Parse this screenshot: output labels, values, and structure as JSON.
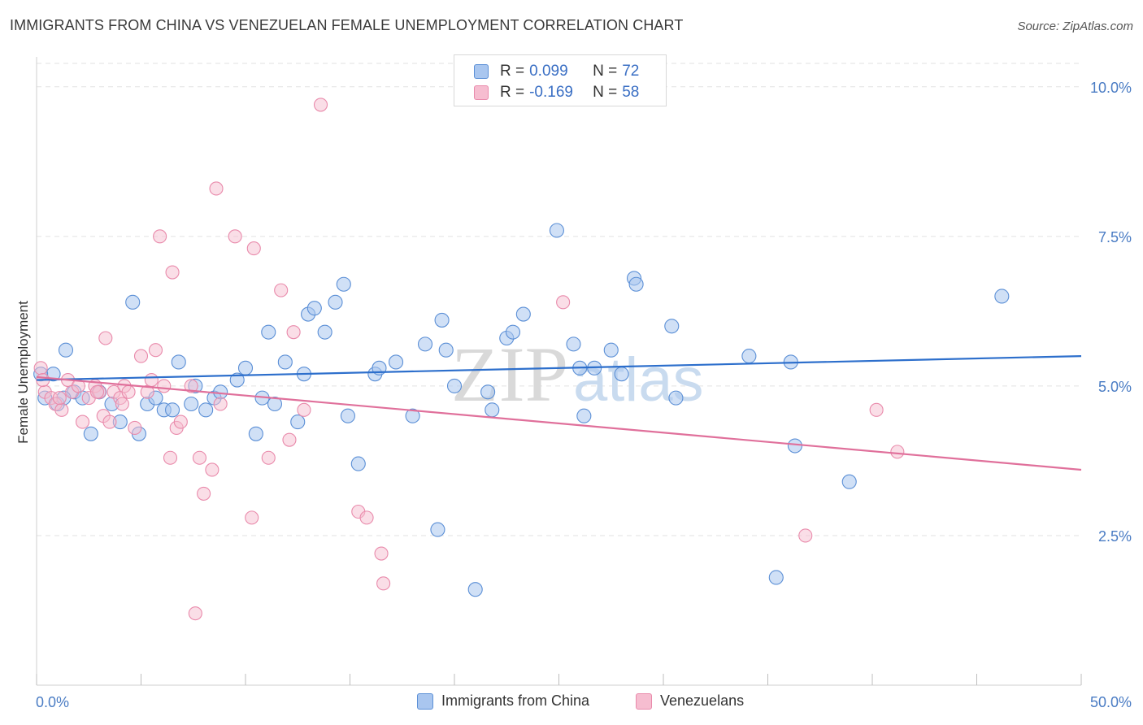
{
  "title": "IMMIGRANTS FROM CHINA VS VENEZUELAN FEMALE UNEMPLOYMENT CORRELATION CHART",
  "source": "Source: ZipAtlas.com",
  "watermark": {
    "zip": "ZIP",
    "atlas": "atlas"
  },
  "legend": {
    "rows": [
      {
        "r_label": "R =",
        "r_value": "0.099",
        "n_label": "N =",
        "n_value": "72"
      },
      {
        "r_label": "R =",
        "r_value": "-0.169",
        "n_label": "N =",
        "n_value": "58"
      }
    ]
  },
  "bottom_legend": [
    "Immigrants from China",
    "Venezuelans"
  ],
  "colors": {
    "china_fill": "#a9c6ef",
    "china_stroke": "#5b8fd6",
    "china_line": "#2d6fcc",
    "ven_fill": "#f6bdd0",
    "ven_stroke": "#e98aab",
    "ven_line": "#e0709b",
    "tick_text": "#4a7cc4",
    "grid": "#e2e2e2"
  },
  "chart_data": {
    "type": "scatter",
    "title": "IMMIGRANTS FROM CHINA VS VENEZUELAN FEMALE UNEMPLOYMENT CORRELATION CHART",
    "xlabel": "",
    "ylabel": "Female Unemployment",
    "x_tick_labels": [
      "0.0%",
      "50.0%"
    ],
    "y_tick_labels": [
      "2.5%",
      "5.0%",
      "7.5%",
      "10.0%"
    ],
    "y_ticks": [
      2.5,
      5.0,
      7.5,
      10.0
    ],
    "xlim": [
      0,
      50
    ],
    "ylim": [
      0,
      10.5
    ],
    "grid": true,
    "legend_position": "top-center",
    "series": [
      {
        "name": "Immigrants from China",
        "r": 0.099,
        "n": 72,
        "trend": [
          [
            0,
            5.1
          ],
          [
            50,
            5.5
          ]
        ],
        "points": [
          [
            0.4,
            4.8
          ],
          [
            0.8,
            5.2
          ],
          [
            1.0,
            4.7
          ],
          [
            1.4,
            5.6
          ],
          [
            1.8,
            4.9
          ],
          [
            2.2,
            4.8
          ],
          [
            2.6,
            4.2
          ],
          [
            3.0,
            4.9
          ],
          [
            3.6,
            4.7
          ],
          [
            4.0,
            4.4
          ],
          [
            4.6,
            6.4
          ],
          [
            4.9,
            4.2
          ],
          [
            5.3,
            4.7
          ],
          [
            5.7,
            4.8
          ],
          [
            6.1,
            4.6
          ],
          [
            6.5,
            4.6
          ],
          [
            6.8,
            5.4
          ],
          [
            7.4,
            4.7
          ],
          [
            7.6,
            5.0
          ],
          [
            8.1,
            4.6
          ],
          [
            8.5,
            4.8
          ],
          [
            8.8,
            4.9
          ],
          [
            9.6,
            5.1
          ],
          [
            10.0,
            5.3
          ],
          [
            10.5,
            4.2
          ],
          [
            10.8,
            4.8
          ],
          [
            11.1,
            5.9
          ],
          [
            11.4,
            4.7
          ],
          [
            11.9,
            5.4
          ],
          [
            12.5,
            4.4
          ],
          [
            12.8,
            5.2
          ],
          [
            13.0,
            6.2
          ],
          [
            13.3,
            6.3
          ],
          [
            13.8,
            5.9
          ],
          [
            14.3,
            6.4
          ],
          [
            14.7,
            6.7
          ],
          [
            14.9,
            4.5
          ],
          [
            15.4,
            3.7
          ],
          [
            16.2,
            5.2
          ],
          [
            16.4,
            5.3
          ],
          [
            17.2,
            5.4
          ],
          [
            18.0,
            4.5
          ],
          [
            18.6,
            5.7
          ],
          [
            19.2,
            2.6
          ],
          [
            19.4,
            6.1
          ],
          [
            19.6,
            5.6
          ],
          [
            20.0,
            5.0
          ],
          [
            21.0,
            1.6
          ],
          [
            21.6,
            4.9
          ],
          [
            21.8,
            4.6
          ],
          [
            22.5,
            5.8
          ],
          [
            22.8,
            5.9
          ],
          [
            23.3,
            6.2
          ],
          [
            24.9,
            7.6
          ],
          [
            25.7,
            5.7
          ],
          [
            26.0,
            5.3
          ],
          [
            26.2,
            4.5
          ],
          [
            26.7,
            5.3
          ],
          [
            27.5,
            5.6
          ],
          [
            28.0,
            5.2
          ],
          [
            28.6,
            6.8
          ],
          [
            28.7,
            6.7
          ],
          [
            30.4,
            6.0
          ],
          [
            30.6,
            4.8
          ],
          [
            34.1,
            5.5
          ],
          [
            35.4,
            1.8
          ],
          [
            36.1,
            5.4
          ],
          [
            36.3,
            4.0
          ],
          [
            38.9,
            3.4
          ],
          [
            46.2,
            6.5
          ],
          [
            0.2,
            5.2
          ],
          [
            1.3,
            4.8
          ]
        ]
      },
      {
        "name": "Venezuelans",
        "r": -0.169,
        "n": 58,
        "trend": [
          [
            0,
            5.15
          ],
          [
            50,
            3.6
          ]
        ],
        "points": [
          [
            0.2,
            5.3
          ],
          [
            0.4,
            4.9
          ],
          [
            0.7,
            4.8
          ],
          [
            0.9,
            4.7
          ],
          [
            1.2,
            4.6
          ],
          [
            1.5,
            5.1
          ],
          [
            1.7,
            4.9
          ],
          [
            2.0,
            5.0
          ],
          [
            2.2,
            4.4
          ],
          [
            2.5,
            4.8
          ],
          [
            2.8,
            5.0
          ],
          [
            3.0,
            4.9
          ],
          [
            3.2,
            4.5
          ],
          [
            3.3,
            5.8
          ],
          [
            3.5,
            4.4
          ],
          [
            3.7,
            4.9
          ],
          [
            4.0,
            4.8
          ],
          [
            4.2,
            5.0
          ],
          [
            4.4,
            4.9
          ],
          [
            4.7,
            4.3
          ],
          [
            5.0,
            5.5
          ],
          [
            5.3,
            4.9
          ],
          [
            5.5,
            5.1
          ],
          [
            5.7,
            5.6
          ],
          [
            5.9,
            7.5
          ],
          [
            6.1,
            5.0
          ],
          [
            6.4,
            3.8
          ],
          [
            6.5,
            6.9
          ],
          [
            6.7,
            4.3
          ],
          [
            6.9,
            4.4
          ],
          [
            7.4,
            5.0
          ],
          [
            7.6,
            1.2
          ],
          [
            7.8,
            3.8
          ],
          [
            8.0,
            3.2
          ],
          [
            8.4,
            3.6
          ],
          [
            8.6,
            8.3
          ],
          [
            8.8,
            4.7
          ],
          [
            9.5,
            7.5
          ],
          [
            10.3,
            2.8
          ],
          [
            10.4,
            7.3
          ],
          [
            11.1,
            3.8
          ],
          [
            11.7,
            6.6
          ],
          [
            12.1,
            4.1
          ],
          [
            12.3,
            5.9
          ],
          [
            12.8,
            4.6
          ],
          [
            13.6,
            9.7
          ],
          [
            15.4,
            2.9
          ],
          [
            15.8,
            2.8
          ],
          [
            16.5,
            2.2
          ],
          [
            16.6,
            1.7
          ],
          [
            25.2,
            6.4
          ],
          [
            36.8,
            2.5
          ],
          [
            40.2,
            4.6
          ],
          [
            41.2,
            3.9
          ],
          [
            4.1,
            4.7
          ],
          [
            2.9,
            4.9
          ],
          [
            1.1,
            4.8
          ],
          [
            0.3,
            5.1
          ]
        ]
      }
    ]
  }
}
